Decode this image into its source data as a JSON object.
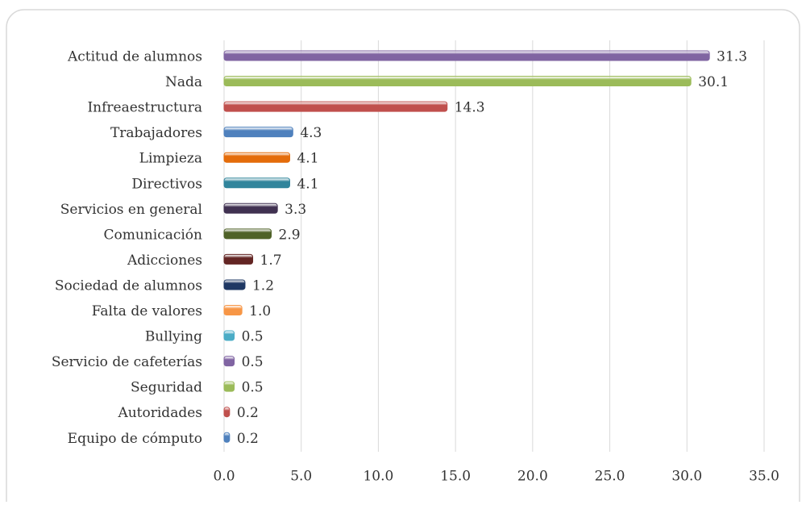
{
  "chart_data": {
    "type": "bar",
    "orientation": "horizontal",
    "categories": [
      "Actitud de alumnos",
      "Nada",
      "Infreaestructura",
      "Trabajadores",
      "Limpieza",
      "Directivos",
      "Servicios en general",
      "Comunicación",
      "Adicciones",
      "Sociedad de alumnos",
      "Falta de valores",
      "Bullying",
      "Servicio de cafeterías",
      "Seguridad",
      "Autoridades",
      "Equipo de cómputo"
    ],
    "values": [
      31.3,
      30.1,
      14.3,
      4.3,
      4.1,
      4.1,
      3.3,
      2.9,
      1.7,
      1.2,
      1.0,
      0.5,
      0.5,
      0.5,
      0.2,
      0.2
    ],
    "value_labels": [
      "31.3",
      "30.1",
      "14.3",
      "4.3",
      "4.1",
      "4.1",
      "3.3",
      "2.9",
      "1.7",
      "1.2",
      "1.0",
      "0.5",
      "0.5",
      "0.5",
      "0.2",
      "0.2"
    ],
    "colors": [
      "#8064a2",
      "#9bbb59",
      "#c0504d",
      "#4f81bd",
      "#e46c0a",
      "#31859c",
      "#403151",
      "#4f6228",
      "#632523",
      "#1f3864",
      "#f79646",
      "#4bacc6",
      "#8064a2",
      "#9bbb59",
      "#c0504d",
      "#4f81bd"
    ],
    "xlim": [
      0,
      35
    ],
    "xticks": [
      {
        "value": 0,
        "label": "0.0"
      },
      {
        "value": 5,
        "label": "5.0"
      },
      {
        "value": 10,
        "label": "10.0"
      },
      {
        "value": 15,
        "label": "15.0"
      },
      {
        "value": 20,
        "label": "20.0"
      },
      {
        "value": 25,
        "label": "25.0"
      },
      {
        "value": 30,
        "label": "30.0"
      },
      {
        "value": 35,
        "label": "35.0"
      }
    ],
    "grid": true
  }
}
